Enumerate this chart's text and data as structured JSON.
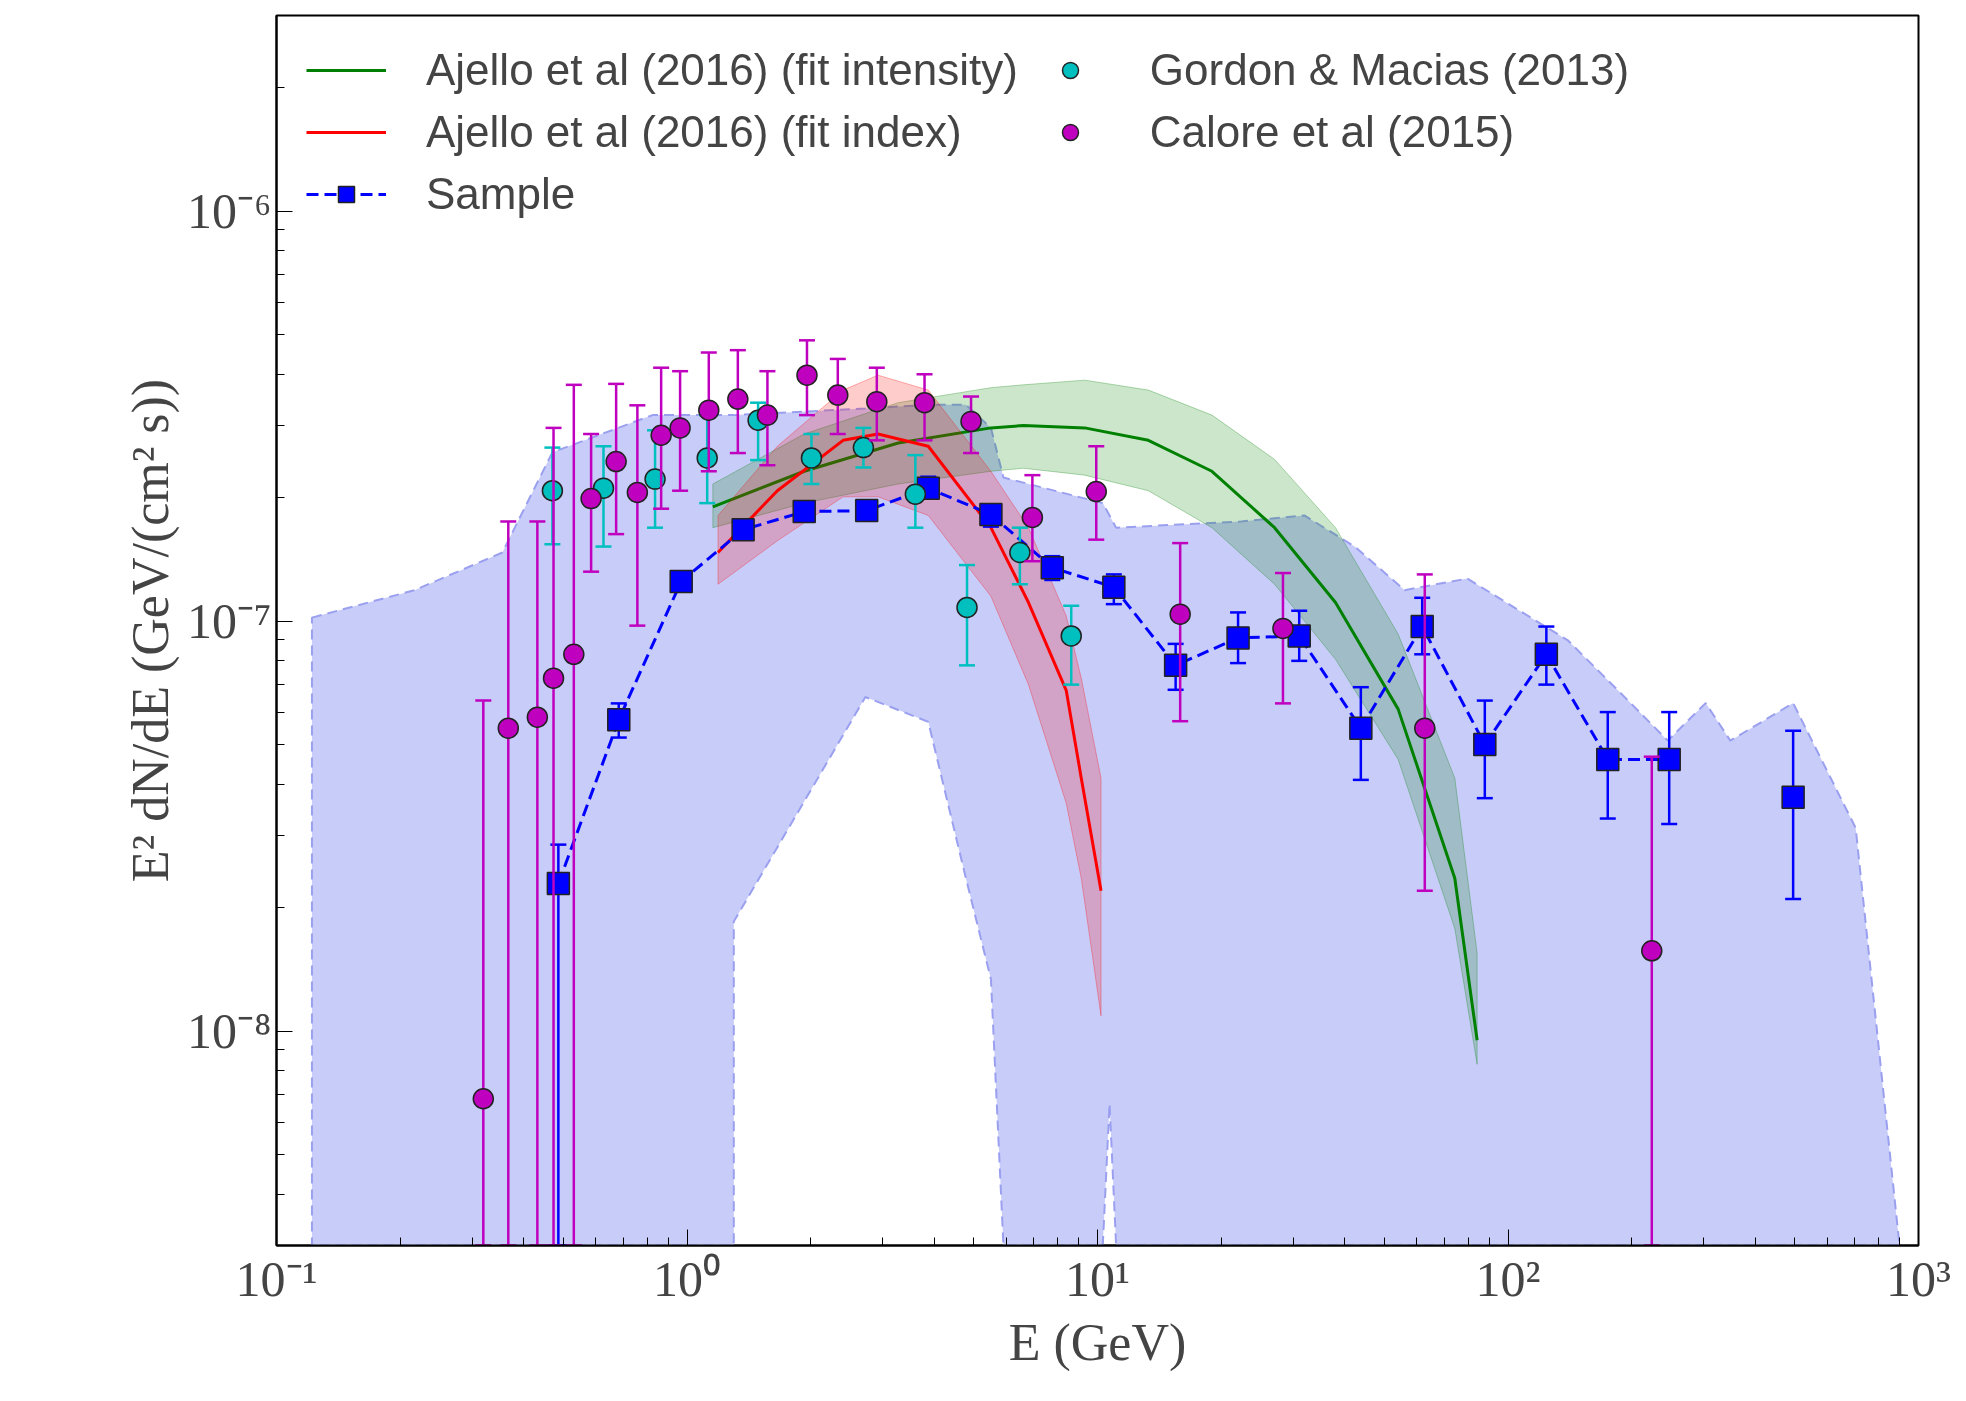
{
  "chart_data": {
    "type": "line",
    "xlabel": "E (GeV)",
    "ylabel": "E² dN/dE (GeV/(cm² s))",
    "log": "xy",
    "grid": false,
    "legend": "top left",
    "xlim": [
      0.1,
      1000
    ],
    "ylim": [
      3e-09,
      3e-06
    ],
    "xticks": [
      {
        "value": 0.1,
        "label": "10⁻¹"
      },
      {
        "value": 1,
        "label": "10⁰"
      },
      {
        "value": 10,
        "label": "10¹"
      },
      {
        "value": 100,
        "label": "10²"
      },
      {
        "value": 1000,
        "label": "10³"
      }
    ],
    "yticks": [
      {
        "value": 1e-08,
        "label": "10⁻⁸"
      },
      {
        "value": 1e-07,
        "label": "10⁻⁷"
      },
      {
        "value": 1e-06,
        "label": "10⁻⁶"
      }
    ],
    "series": [
      {
        "type": "area",
        "color": "#c8ccf9",
        "x": [
          0.122,
          0.217,
          0.355,
          0.47,
          0.824,
          1.3,
          1.3,
          2.72,
          3.87,
          4.78,
          5.5,
          5.9,
          10.3,
          10.7,
          11.1,
          22.4,
          31.9,
          42.3,
          56.0,
          79.6,
          140,
          199,
          245,
          303,
          348,
          495,
          703,
          899
        ],
        "values": [
          null,
          null,
          null,
          null,
          null,
          null,
          null,
          null,
          null,
          null,
          null,
          null,
          null,
          null,
          null,
          null,
          null,
          null,
          null,
          null,
          null,
          null,
          null,
          null,
          null,
          null,
          null,
          null
        ],
        "upper": [
          1.02e-07,
          1.19e-07,
          1.47e-07,
          2.58e-07,
          3.18e-07,
          3.18e-07,
          3.18e-07,
          3.3e-07,
          3.37e-07,
          3.37e-07,
          2.96e-07,
          2.24e-07,
          1.94e-07,
          1.81e-07,
          1.69e-07,
          1.75e-07,
          1.81e-07,
          1.52e-07,
          1.19e-07,
          1.27e-07,
          8.97e-08,
          6.31e-08,
          5.11e-08,
          6.31e-08,
          5.11e-08,
          6.31e-08,
          3.13e-08,
          3e-09
        ],
        "lower": [
          3e-09,
          3e-09,
          3e-09,
          3e-09,
          3e-09,
          3e-09,
          1.85e-08,
          6.53e-08,
          5.68e-08,
          2.36e-08,
          1.34e-08,
          3e-09,
          3e-09,
          6.65e-09,
          3e-09,
          3e-09,
          3e-09,
          3e-09,
          3e-09,
          3e-09,
          3e-09,
          3e-09,
          3e-09,
          3e-09,
          3e-09,
          3e-09,
          3e-09,
          3e-09
        ]
      },
      {
        "type": "line",
        "name": "Ajello et al (2016) (fit intensity)",
        "color": "#008000",
        "marker": "none",
        "line_style": "solid",
        "x": [
          1.156,
          1.93,
          3.27,
          5.5,
          6.6,
          9.31,
          13.3,
          19.0,
          27.0,
          38.0,
          54.0,
          74.2,
          84.1
        ],
        "values": [
          1.9e-07,
          2.32e-07,
          2.72e-07,
          2.96e-07,
          3e-07,
          2.96e-07,
          2.76e-07,
          2.32e-07,
          1.69e-07,
          1.11e-07,
          6.1e-08,
          2.36e-08,
          9.5e-09
        ],
        "upper": [
          2.16e-07,
          2.86e-07,
          3.41e-07,
          3.71e-07,
          3.77e-07,
          3.87e-07,
          3.66e-07,
          3.18e-07,
          2.48e-07,
          1.69e-07,
          9.3e-08,
          4.14e-08,
          1.55e-08
        ],
        "lower": [
          1.69e-07,
          1.94e-07,
          2.16e-07,
          2.32e-07,
          2.36e-07,
          2.27e-07,
          2.08e-07,
          1.69e-07,
          1.23e-07,
          8.07e-08,
          4.6e-08,
          1.78e-08,
          8.3e-09
        ]
      },
      {
        "type": "line",
        "name": "Ajello et al (2016) (fit index)",
        "color": "#ff0000",
        "marker": "none",
        "line_style": "solid",
        "x": [
          1.19,
          1.66,
          2.4,
          2.92,
          3.87,
          5.5,
          6.79,
          8.39,
          9.13,
          10.2
        ],
        "values": [
          1.47e-07,
          2.08e-07,
          2.76e-07,
          2.86e-07,
          2.67e-07,
          1.69e-07,
          1.11e-07,
          6.78e-08,
          4.14e-08,
          2.2e-08
        ],
        "upper": [
          1.81e-07,
          2.67e-07,
          3.66e-07,
          3.98e-07,
          3.66e-07,
          2.32e-07,
          1.69e-07,
          1.03e-07,
          7.26e-08,
          4.14e-08
        ],
        "lower": [
          1.23e-07,
          1.57e-07,
          2.01e-07,
          2.01e-07,
          1.81e-07,
          1.15e-07,
          7e-08,
          3.6e-08,
          2.36e-08,
          1.09e-08
        ]
      },
      {
        "name": "Sample",
        "color": "#0000ff",
        "marker": "square",
        "line_style": "dashed",
        "x": [
          0.486,
          0.682,
          0.968,
          1.37,
          1.93,
          2.74,
          3.87,
          5.5,
          7.76,
          10.96,
          15.5,
          22.0,
          31.0,
          43.8,
          61.8,
          87.8,
          124,
          175,
          247,
          350,
          495
        ],
        "values": [
          2.29e-08,
          5.75e-08,
          1.25e-07,
          1.67e-07,
          1.85e-07,
          1.86e-07,
          2.11e-07,
          1.82e-07,
          1.35e-07,
          1.21e-07,
          7.8e-08,
          9.1e-08,
          9.2e-08,
          5.48e-08,
          9.7e-08,
          5e-08,
          8.3e-08,
          4.6e-08,
          4.6e-08,
          null,
          3.72e-08
        ],
        "errors": [
          [
            3e-09,
            2.85e-08
          ],
          [
            5.2e-08,
            6.3e-08
          ],
          [
            1.18e-07,
            1.32e-07
          ],
          [
            1.59e-07,
            1.77e-07
          ],
          [
            1.76e-07,
            1.94e-07
          ],
          [
            1.76e-07,
            1.97e-07
          ],
          [
            2e-07,
            2.25e-07
          ],
          [
            1.7e-07,
            1.9e-07
          ],
          [
            1.26e-07,
            1.44e-07
          ],
          [
            1.1e-07,
            1.3e-07
          ],
          [
            6.8e-08,
            8.8e-08
          ],
          [
            7.9e-08,
            1.05e-07
          ],
          [
            8e-08,
            1.06e-07
          ],
          [
            4.1e-08,
            6.9e-08
          ],
          [
            8.3e-08,
            1.14e-07
          ],
          [
            3.7e-08,
            6.4e-08
          ],
          [
            7e-08,
            9.7e-08
          ],
          [
            3.3e-08,
            6e-08
          ],
          [
            3.2e-08,
            6e-08
          ],
          null,
          [
            2.1e-08,
            5.4e-08
          ]
        ]
      },
      {
        "type": "scatter",
        "name": "Gordon & Macias (2013)",
        "color": "#00bfbf",
        "marker": "circle",
        "x": [
          0.47,
          0.626,
          0.836,
          1.12,
          1.49,
          2.01,
          2.69,
          3.6,
          4.81,
          6.47,
          8.63
        ],
        "values": [
          2.08e-07,
          2.11e-07,
          2.22e-07,
          2.5e-07,
          3.09e-07,
          2.5e-07,
          2.65e-07,
          2.04e-07,
          1.08e-07,
          1.47e-07,
          9.2e-08
        ],
        "errors": [
          [
            1.54e-07,
            2.65e-07
          ],
          [
            1.52e-07,
            2.67e-07
          ],
          [
            1.69e-07,
            2.92e-07
          ],
          [
            1.94e-07,
            3.18e-07
          ],
          [
            2.47e-07,
            3.41e-07
          ],
          [
            2.16e-07,
            2.86e-07
          ],
          [
            2.37e-07,
            2.96e-07
          ],
          [
            1.69e-07,
            2.54e-07
          ],
          [
            7.8e-08,
            1.37e-07
          ],
          [
            1.23e-07,
            1.69e-07
          ],
          [
            7e-08,
            1.09e-07
          ]
        ]
      },
      {
        "type": "scatter",
        "name": "Calore et al (2015)",
        "color": "#bf00bf",
        "marker": "circle",
        "x": [
          0.319,
          0.367,
          0.432,
          0.473,
          0.53,
          0.584,
          0.672,
          0.757,
          0.865,
          0.962,
          1.13,
          1.33,
          1.57,
          1.96,
          2.33,
          2.9,
          3.79,
          4.92,
          6.94,
          9.93,
          15.9,
          28.3,
          62.7,
          224
        ],
        "values": [
          6.84e-09,
          5.48e-08,
          5.83e-08,
          7.26e-08,
          8.3e-08,
          1.99e-07,
          2.45e-07,
          2.06e-07,
          2.84e-07,
          2.96e-07,
          3.27e-07,
          3.48e-07,
          3.18e-07,
          3.98e-07,
          3.56e-07,
          3.43e-07,
          3.41e-07,
          3.07e-07,
          1.79e-07,
          2.07e-07,
          1.04e-07,
          9.6e-08,
          5.48e-08,
          1.57e-08
        ],
        "errors": [
          [
            3e-09,
            6.4e-08
          ],
          [
            3e-09,
            1.75e-07
          ],
          [
            3e-09,
            1.75e-07
          ],
          [
            3e-09,
            2.96e-07
          ],
          [
            3e-09,
            3.77e-07
          ],
          [
            1.32e-07,
            2.86e-07
          ],
          [
            1.63e-07,
            3.79e-07
          ],
          [
            9.75e-08,
            3.36e-07
          ],
          [
            1.88e-07,
            4.15e-07
          ],
          [
            2.08e-07,
            4.07e-07
          ],
          [
            2.32e-07,
            4.52e-07
          ],
          [
            2.57e-07,
            4.58e-07
          ],
          [
            2.4e-07,
            4.07e-07
          ],
          [
            3.18e-07,
            4.84e-07
          ],
          [
            2.86e-07,
            4.36e-07
          ],
          [
            2.76e-07,
            4.15e-07
          ],
          [
            2.76e-07,
            4e-07
          ],
          [
            2.57e-07,
            3.53e-07
          ],
          [
            1.4e-07,
            2.27e-07
          ],
          [
            1.58e-07,
            2.67e-07
          ],
          [
            5.7e-08,
            1.55e-07
          ],
          [
            6.3e-08,
            1.31e-07
          ],
          [
            2.2e-08,
            1.3e-07
          ],
          [
            3e-09,
            4.67e-08
          ]
        ]
      }
    ]
  }
}
